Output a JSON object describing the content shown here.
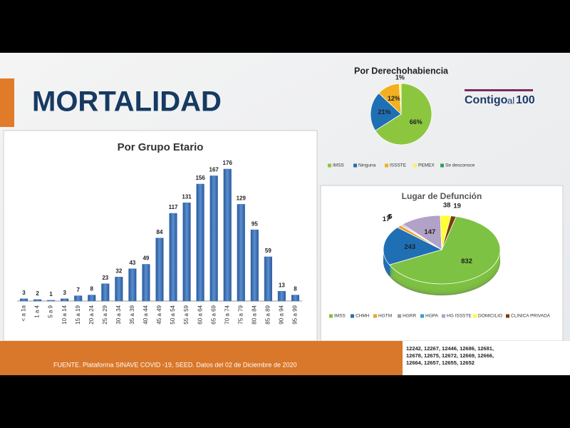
{
  "title": "MORTALIDAD",
  "logo": [
    "Contigo",
    "al",
    "100"
  ],
  "footer": {
    "source": "FUENTE. Plataforma SINAVE COVID -19, SEED. Datos del 02 de Diciembre de 2020",
    "codes": [
      "12242, 12267, 12446, 12686, 12681,",
      "12678, 12675, 12672, 12669, 12666,",
      "12664, 12657, 12655, 12652"
    ]
  },
  "chart_data": [
    {
      "type": "bar",
      "title": "Por Grupo Etario",
      "color": "#3a6fb5",
      "categories": [
        "< a 1a",
        "1 a 4",
        "5 a 9",
        "10 a 14",
        "15 a 19",
        "20 a 24",
        "25 a 29",
        "30 a 34",
        "35 a 39",
        "40 a 44",
        "45 a 49",
        "50 a 54",
        "55 a 59",
        "60 a 64",
        "65 a 69",
        "70 a 74",
        "75 a 79",
        "80 a 84",
        "85 a 89",
        "90 a 94",
        "95 a 99"
      ],
      "values": [
        3,
        2,
        1,
        3,
        7,
        8,
        23,
        32,
        43,
        49,
        84,
        117,
        131,
        156,
        167,
        176,
        129,
        95,
        59,
        13,
        8
      ]
    },
    {
      "type": "pie",
      "title": "Por Derechohabiencia",
      "series": [
        {
          "name": "IMSS",
          "color": "#8cc63f",
          "values": [
            66
          ],
          "value_labels": [
            "66%"
          ]
        },
        {
          "name": "Ninguna",
          "color": "#1f6fb5",
          "values": [
            21
          ],
          "value_labels": [
            "21%"
          ]
        },
        {
          "name": "ISSSTE",
          "color": "#f2b01e",
          "values": [
            12
          ],
          "value_labels": [
            "12%"
          ]
        },
        {
          "name": "PEMEX",
          "color": "#fff05a",
          "values": [
            1
          ],
          "value_labels": [
            "1%"
          ]
        },
        {
          "name": "Se desconoce",
          "color": "#2e9e5b",
          "values": [
            0
          ],
          "value_labels": [
            null
          ]
        }
      ]
    },
    {
      "type": "pie3d",
      "title": "Lugar de Defunción",
      "series": [
        {
          "name": "IMSS",
          "color": "#7dc242",
          "values": [
            832
          ]
        },
        {
          "name": "CHMH",
          "color": "#1f6fb5",
          "values": [
            243
          ]
        },
        {
          "name": "HGTM",
          "color": "#f0a030",
          "values": [
            17
          ]
        },
        {
          "name": "HGRR",
          "color": "#9e9e9e",
          "values": [
            5
          ]
        },
        {
          "name": "HGPA",
          "color": "#3c9ad6",
          "values": [
            5
          ]
        },
        {
          "name": "HG ISSSTE",
          "color": "#b3a2c7",
          "values": [
            147
          ]
        },
        {
          "name": "DOMICILIO",
          "color": "#ffff33",
          "values": [
            38
          ]
        },
        {
          "name": "CLINICA PRIVADA",
          "color": "#7b3f00",
          "values": [
            19
          ]
        }
      ]
    }
  ]
}
